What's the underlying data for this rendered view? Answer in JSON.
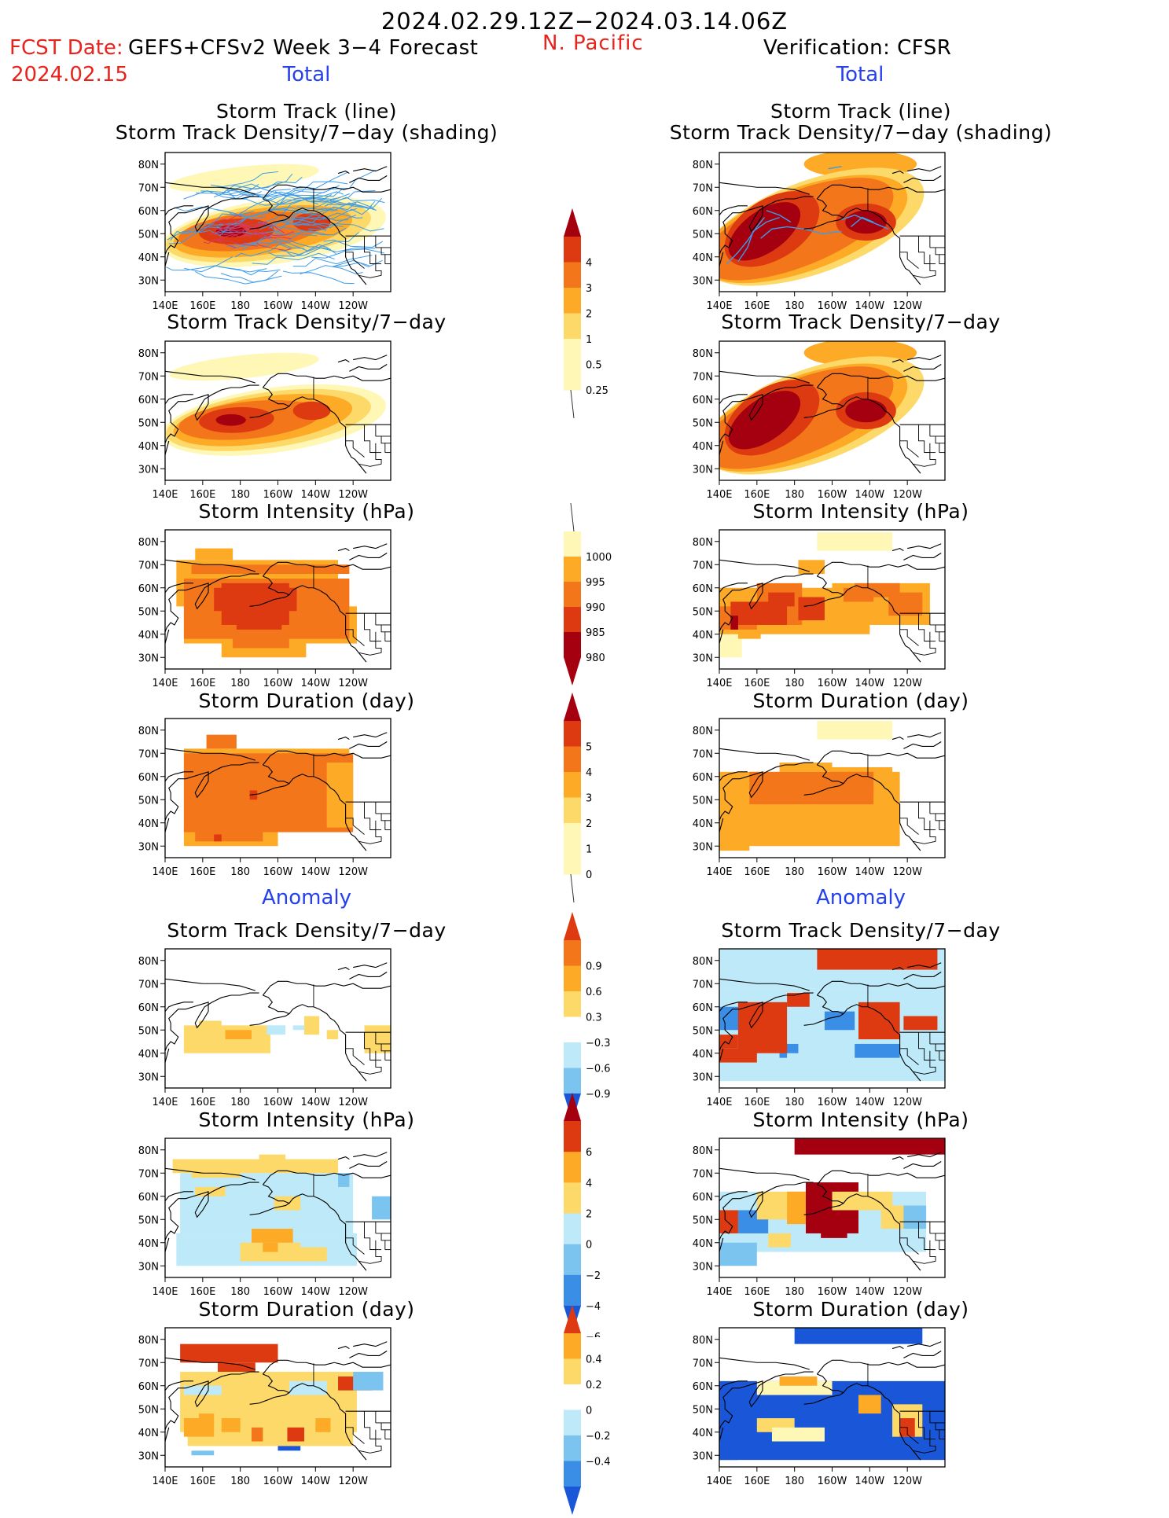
{
  "header": {
    "date_range": "2024.02.29.12Z−2024.03.14.06Z",
    "fcst_label": "FCST Date:",
    "model_label": "GEFS+CFSv2 Week 3−4 Forecast",
    "fcst_date": "2024.02.15",
    "region": "N. Pacific",
    "verification": "Verification: CFSR"
  },
  "sections": {
    "total": "Total",
    "anomaly": "Anomaly"
  },
  "panel_titles": {
    "track_line": "Storm Track (line)",
    "track_shading": "Storm Track Density/7−day (shading)",
    "density": "Storm Track Density/7−day",
    "intensity": "Storm Intensity (hPa)",
    "duration": "Storm Duration (day)"
  },
  "axes": {
    "lon_labels": [
      "140E",
      "160E",
      "180",
      "160W",
      "140W",
      "120W"
    ],
    "lat_labels": [
      "80N",
      "70N",
      "60N",
      "50N",
      "40N",
      "30N"
    ]
  },
  "colorbars": {
    "density_total": [
      "0.25",
      "0.5",
      "1",
      "2",
      "3",
      "4"
    ],
    "intensity_total": [
      "1000",
      "995",
      "990",
      "985",
      "980"
    ],
    "duration_total": [
      "0",
      "1",
      "2",
      "3",
      "4",
      "5"
    ],
    "density_anom": [
      "0.9",
      "0.6",
      "0.3",
      "−0.3",
      "−0.6",
      "−0.9"
    ],
    "intensity_anom": [
      "6",
      "4",
      "2",
      "0",
      "−2",
      "−4",
      "−6"
    ],
    "duration_anom": [
      "0.4",
      "0.2",
      "0",
      "−0.2",
      "−0.4"
    ]
  },
  "colors": {
    "yellow_pale": "#fff7b6",
    "yellow": "#fdd96a",
    "orange_light": "#fdaa26",
    "orange": "#f4761a",
    "red": "#de3a12",
    "dark_red": "#a5000f",
    "blue_pale": "#bde9f8",
    "blue_light": "#7cc4f0",
    "blue": "#3a8ee6",
    "blue_dark": "#1956d8",
    "track_blue": "#3d9be9",
    "track_red": "#d23c6b"
  }
}
